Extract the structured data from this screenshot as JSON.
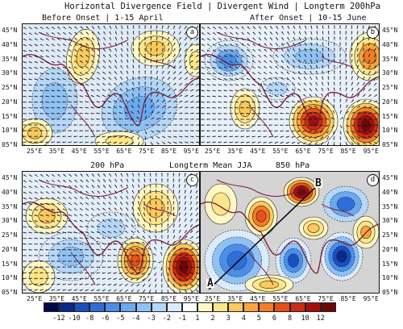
{
  "titles": {
    "main": "Horizontal Divergence Field | Divergent Wind | Longterm 200hPa",
    "left_sub": "Before Onset | 1-15 April",
    "right_sub": "After Onset | 10-15 June",
    "row2_left": "200 hPa",
    "row2_mid": "Longterm Mean JJA",
    "row2_right": "850 hPa"
  },
  "panels": [
    {
      "id": "a",
      "label": "a"
    },
    {
      "id": "b",
      "label": "b"
    },
    {
      "id": "c",
      "label": "c"
    },
    {
      "id": "d",
      "label": "d"
    }
  ],
  "transect": {
    "start_label": "A",
    "end_label": "B"
  },
  "lat_ticks": [
    "45°N",
    "40°N",
    "35°N",
    "30°N",
    "25°N",
    "20°N",
    "15°N",
    "10°N",
    "05°N"
  ],
  "lon_ticks": [
    "25°E",
    "35°E",
    "45°E",
    "55°E",
    "65°E",
    "75°E",
    "85°E",
    "95°E"
  ],
  "colorbar": {
    "labels": [
      "-12",
      "-10",
      "-8",
      "-6",
      "-5",
      "-4",
      "-3",
      "-2",
      "-1",
      "1",
      "2",
      "3",
      "4",
      "5",
      "6",
      "8",
      "10",
      "12"
    ],
    "colors": [
      "#06064e",
      "#0b2a8c",
      "#1a4fbf",
      "#2f6ed8",
      "#4a8ee8",
      "#6aa8ef",
      "#8fc2f4",
      "#b5d7f8",
      "#dcebfb",
      "#ffffff",
      "#fff7c4",
      "#fde58a",
      "#fbc95c",
      "#f9a43d",
      "#f47c28",
      "#e8501a",
      "#cf2a12",
      "#a50f0c",
      "#6f0707"
    ]
  },
  "colors": {
    "coast": "#7a1a3a",
    "arrow": "#111111",
    "contour": "#111111",
    "neutral": "#cfcfcf"
  }
}
